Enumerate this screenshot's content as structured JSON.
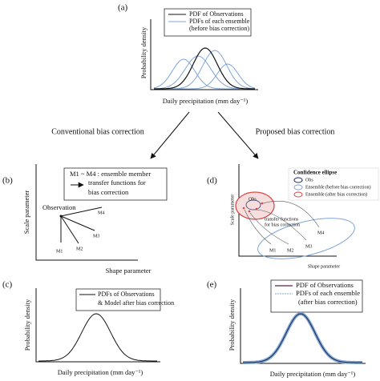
{
  "panel_a": {
    "label": "(a)",
    "legend": [
      "PDF of Observations",
      "PDFs of each ensemble",
      "(before bias correction)"
    ],
    "y_axis": "Probability density",
    "x_axis": "Daily precipitation (mm day⁻¹)"
  },
  "arrows": {
    "left": "Conventional bias correction",
    "right": "Proposed bias correction"
  },
  "panel_b": {
    "label": "(b)",
    "box": [
      "M1 ~ M4 : ensemble member",
      "transfer functions for",
      "bias correction"
    ],
    "observation": "Observation",
    "members": [
      "M1",
      "M2",
      "M3",
      "M4"
    ],
    "y_axis": "Scale parameter",
    "x_axis": "Shape parameter"
  },
  "panel_c": {
    "label": "(c)",
    "legend": [
      "PDFs of Observations",
      "& Model after bias correction"
    ],
    "y_axis": "Probability density",
    "x_axis": "Daily precipitation (mm day⁻¹)"
  },
  "panel_d": {
    "label": "(d)",
    "legend_title": "Confidence ellipse",
    "legend": [
      "Obs",
      "Ensemble (before bias correction)",
      "Ensemble (after bias correction)"
    ],
    "obs": "Obs",
    "transfer": [
      "transfer functions",
      "for bias correction"
    ],
    "members": [
      "M1",
      "M2",
      "M3",
      "M4"
    ],
    "y_axis": "Scale parameter",
    "x_axis": "Shape parameter"
  },
  "panel_e": {
    "label": "(e)",
    "legend": [
      "PDF of Observations",
      "PDFs of each ensemble",
      "(after bias correction)"
    ],
    "y_axis": "Probability density",
    "x_axis": "Daily precipitation (mm day⁻¹)"
  }
}
